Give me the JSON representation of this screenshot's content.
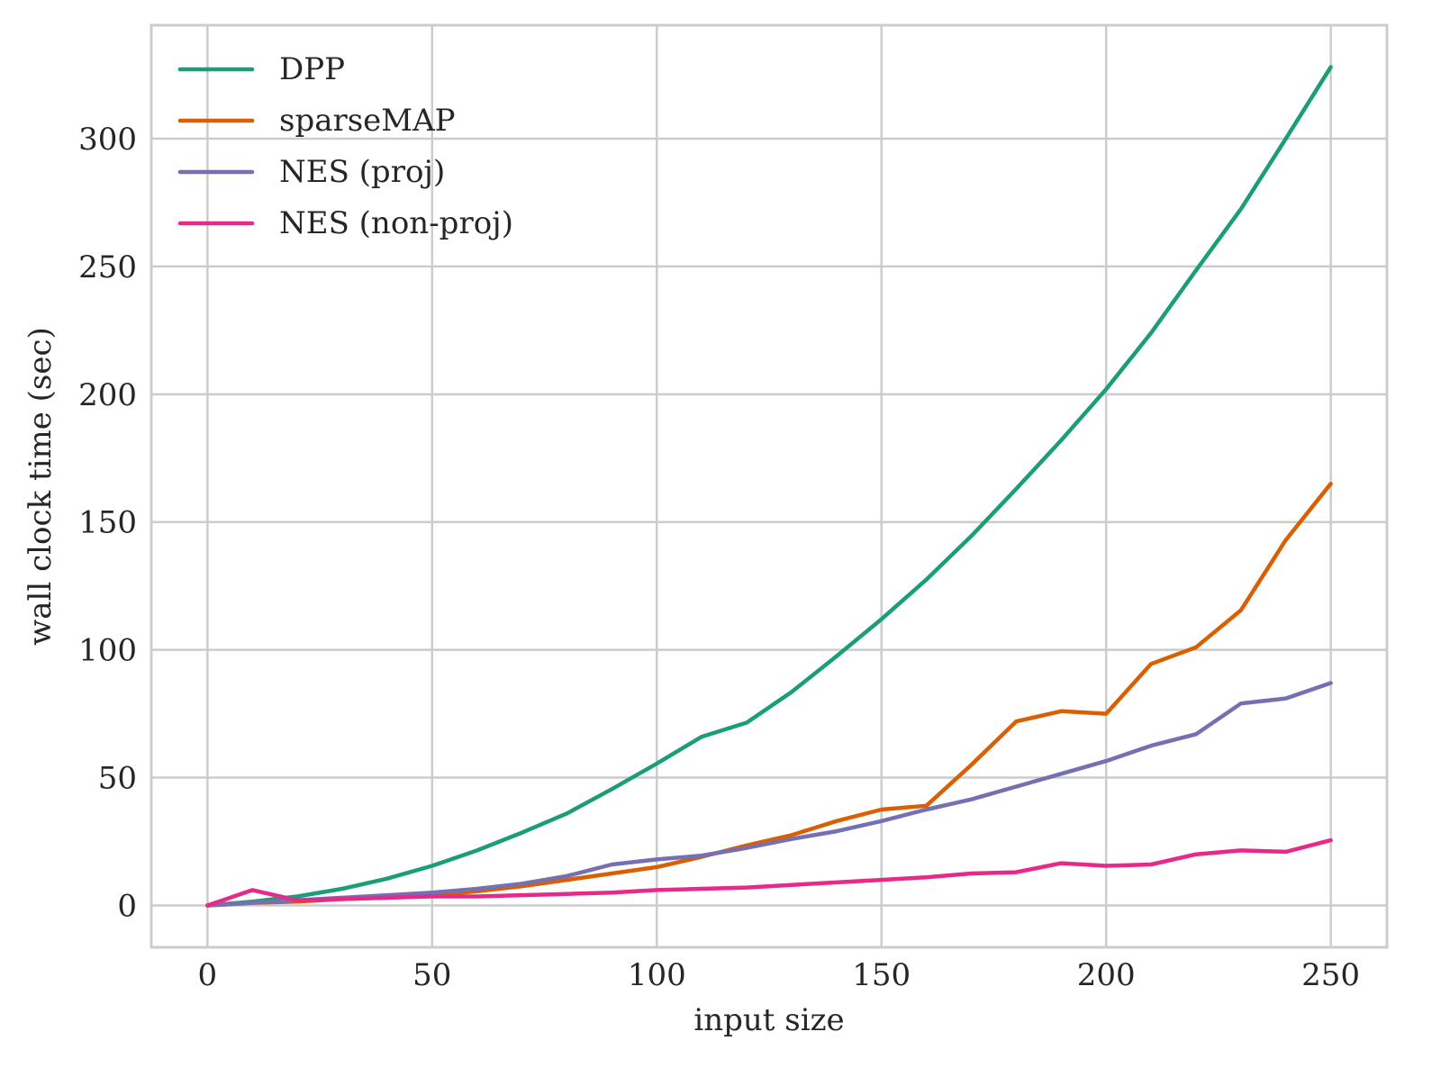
{
  "chart_data": {
    "type": "line",
    "title": "",
    "xlabel": "input size",
    "ylabel": "wall clock time (sec)",
    "xlim": [
      -12.5,
      262.5
    ],
    "ylim": [
      -16.4,
      344.4
    ],
    "xticks": [
      0,
      50,
      100,
      150,
      200,
      250
    ],
    "yticks": [
      0,
      50,
      100,
      150,
      200,
      250,
      300
    ],
    "grid": true,
    "legend_position": "top-left",
    "x": [
      0,
      10,
      20,
      30,
      40,
      50,
      60,
      70,
      80,
      90,
      100,
      110,
      120,
      130,
      140,
      150,
      160,
      170,
      180,
      190,
      200,
      210,
      220,
      230,
      240,
      250
    ],
    "series": [
      {
        "name": "DPP",
        "color": "#1b9e77",
        "values": [
          0,
          1.5,
          3.5,
          6.5,
          10.5,
          15.5,
          21.5,
          28.5,
          36,
          45.5,
          55.5,
          66,
          71.5,
          83.5,
          97.5,
          112,
          127.5,
          144.5,
          163,
          182,
          202,
          224,
          248.5,
          272.5,
          300,
          328
        ]
      },
      {
        "name": "sparseMAP",
        "color": "#d95f02",
        "values": [
          0,
          1,
          1.5,
          2.5,
          3,
          4,
          5.5,
          7.5,
          10,
          12.5,
          15,
          19,
          23.5,
          27.5,
          33,
          37.5,
          39,
          55,
          72,
          76,
          75,
          94.5,
          101,
          115.5,
          143,
          165
        ]
      },
      {
        "name": "NES (proj)",
        "color": "#7570b3",
        "values": [
          0,
          1,
          2,
          3,
          4,
          5,
          6.5,
          8.5,
          11.5,
          16,
          18,
          19.5,
          22.5,
          26,
          29,
          33,
          37.5,
          41.5,
          46.5,
          51.5,
          56.5,
          62.5,
          67,
          79,
          81,
          87
        ]
      },
      {
        "name": "NES (non-proj)",
        "color": "#e7298a",
        "values": [
          0,
          6,
          2,
          2.5,
          3,
          3.5,
          3.5,
          4,
          4.5,
          5,
          6,
          6.5,
          7,
          8,
          9,
          10,
          11,
          12.5,
          13,
          16.5,
          15.5,
          16,
          20,
          21.5,
          21,
          25.5
        ]
      }
    ]
  }
}
